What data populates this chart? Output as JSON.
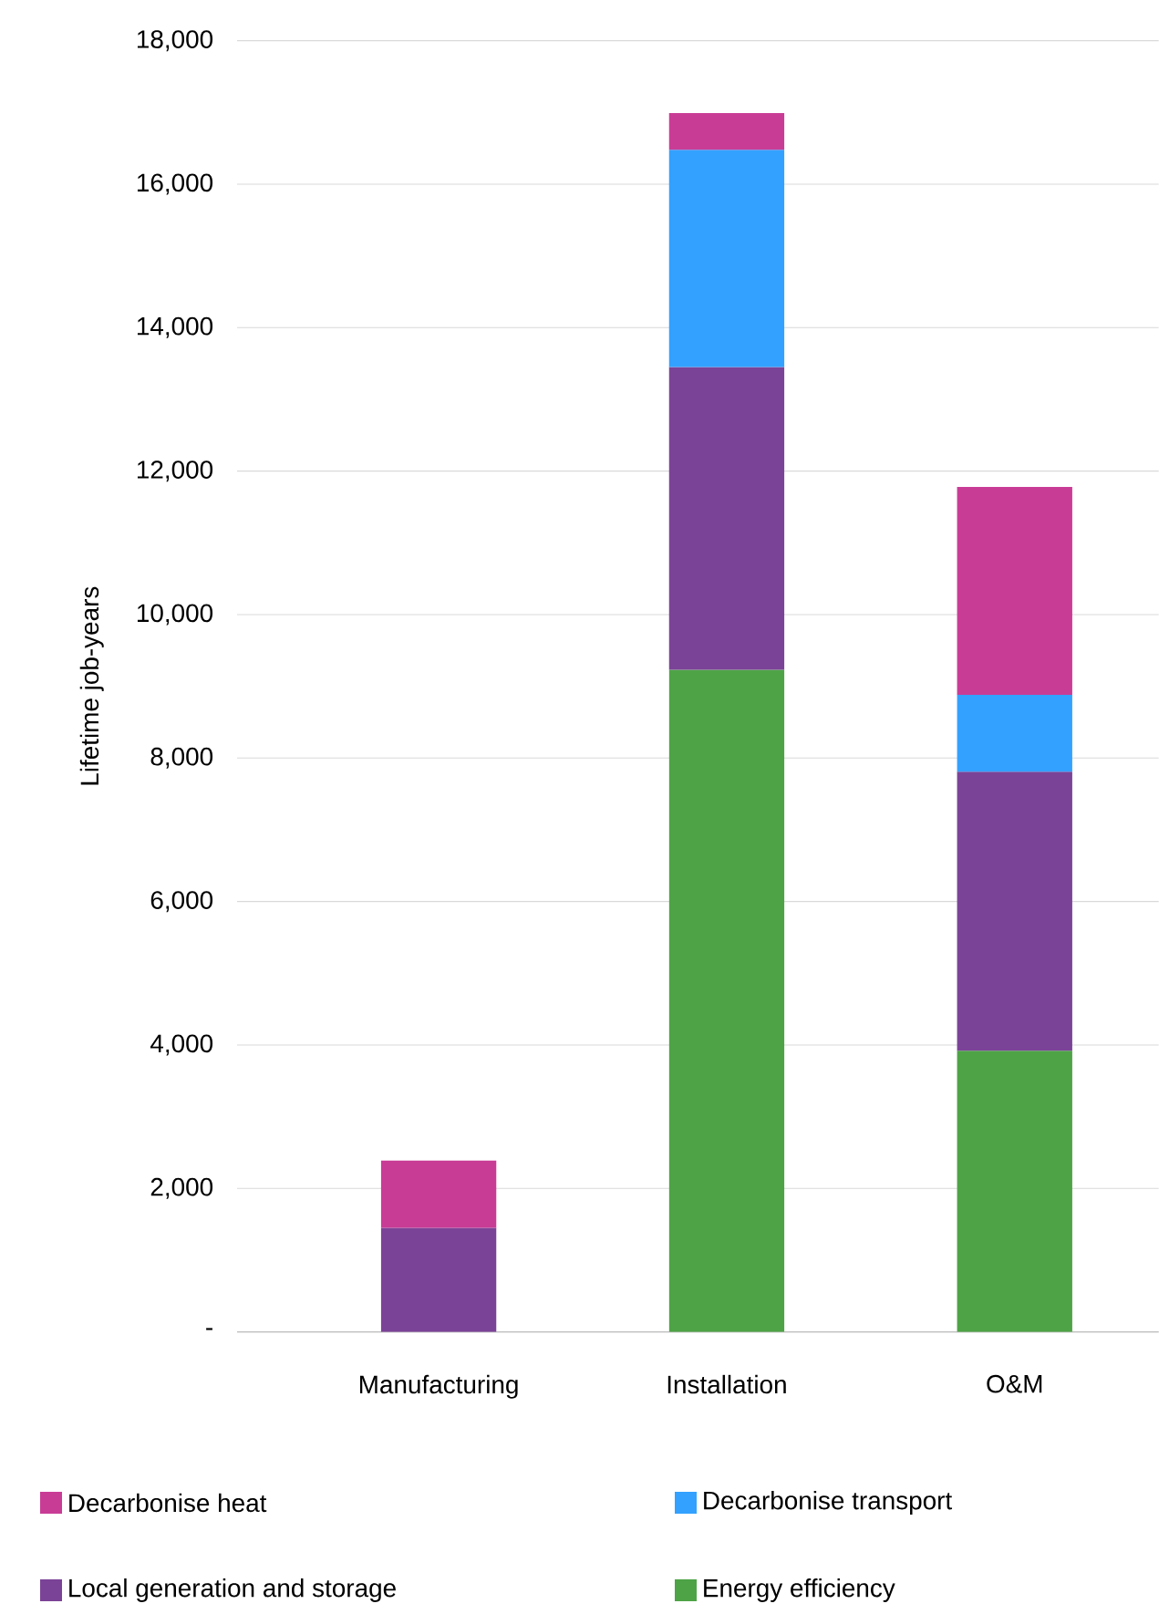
{
  "chart_data": {
    "type": "bar",
    "stacked": true,
    "ylabel": "Lifetime job-years",
    "categories": [
      "Manufacturing",
      "Installation",
      "O&M"
    ],
    "series": [
      {
        "name": "Energy efficiency",
        "color": "#4ea346",
        "values": [
          null,
          9230,
          3920
        ]
      },
      {
        "name": "Local generation and storage",
        "color": "#7b4397",
        "values": [
          1450,
          4220,
          3890
        ]
      },
      {
        "name": "Decarbonise transport",
        "color": "#33a1ff",
        "values": [
          null,
          3030,
          1070
        ]
      },
      {
        "name": "Decarbonise heat",
        "color": "#c93c96",
        "values": [
          940,
          510,
          2900
        ]
      }
    ],
    "ylim": [
      0,
      18000
    ],
    "yticks": [
      {
        "value": 0,
        "label": "-"
      },
      {
        "value": 2000,
        "label": "2,000"
      },
      {
        "value": 4000,
        "label": "4,000"
      },
      {
        "value": 6000,
        "label": "6,000"
      },
      {
        "value": 8000,
        "label": "8,000"
      },
      {
        "value": 10000,
        "label": "10,000"
      },
      {
        "value": 12000,
        "label": "12,000"
      },
      {
        "value": 14000,
        "label": "14,000"
      },
      {
        "value": 16000,
        "label": "16,000"
      },
      {
        "value": 18000,
        "label": "18,000"
      }
    ],
    "grid": "y",
    "legend": "bottom"
  }
}
